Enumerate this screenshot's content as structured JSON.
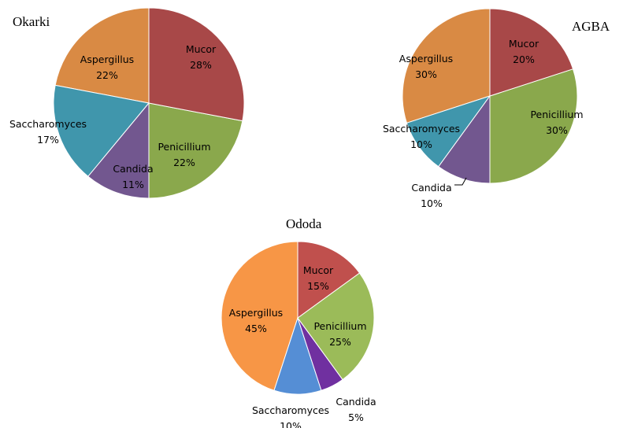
{
  "chart_data": [
    {
      "type": "pie",
      "title": "Okarki",
      "categories": [
        "Mucor",
        "Penicillium",
        "Candida",
        "Saccharomyces",
        "Aspergillus"
      ],
      "values": [
        28,
        22,
        11,
        17,
        22
      ],
      "labels": [
        "28%",
        "22%",
        "11%",
        "17%",
        "22%"
      ],
      "colors": [
        "#a84848",
        "#8aa84c",
        "#72578f",
        "#4096ac",
        "#d98a44"
      ]
    },
    {
      "type": "pie",
      "title": "AGBA",
      "categories": [
        "Mucor",
        "Penicillium",
        "Candida",
        "Saccharomyces",
        "Aspergillus"
      ],
      "values": [
        20,
        30,
        10,
        10,
        30
      ],
      "labels": [
        "20%",
        "30%",
        "10%",
        "10%",
        "30%"
      ],
      "colors": [
        "#a84848",
        "#8aa84c",
        "#72578f",
        "#4096ac",
        "#d98a44"
      ]
    },
    {
      "type": "pie",
      "title": "Ododa",
      "categories": [
        "Mucor",
        "Penicillium",
        "Candida",
        "Saccharomyces",
        "Aspergillus"
      ],
      "values": [
        15,
        25,
        5,
        10,
        45
      ],
      "labels": [
        "15%",
        "25%",
        "5%",
        "10%",
        "45%"
      ],
      "colors": [
        "#c0504d",
        "#9bbb59",
        "#7030a0",
        "#558ed5",
        "#f79646"
      ]
    }
  ]
}
